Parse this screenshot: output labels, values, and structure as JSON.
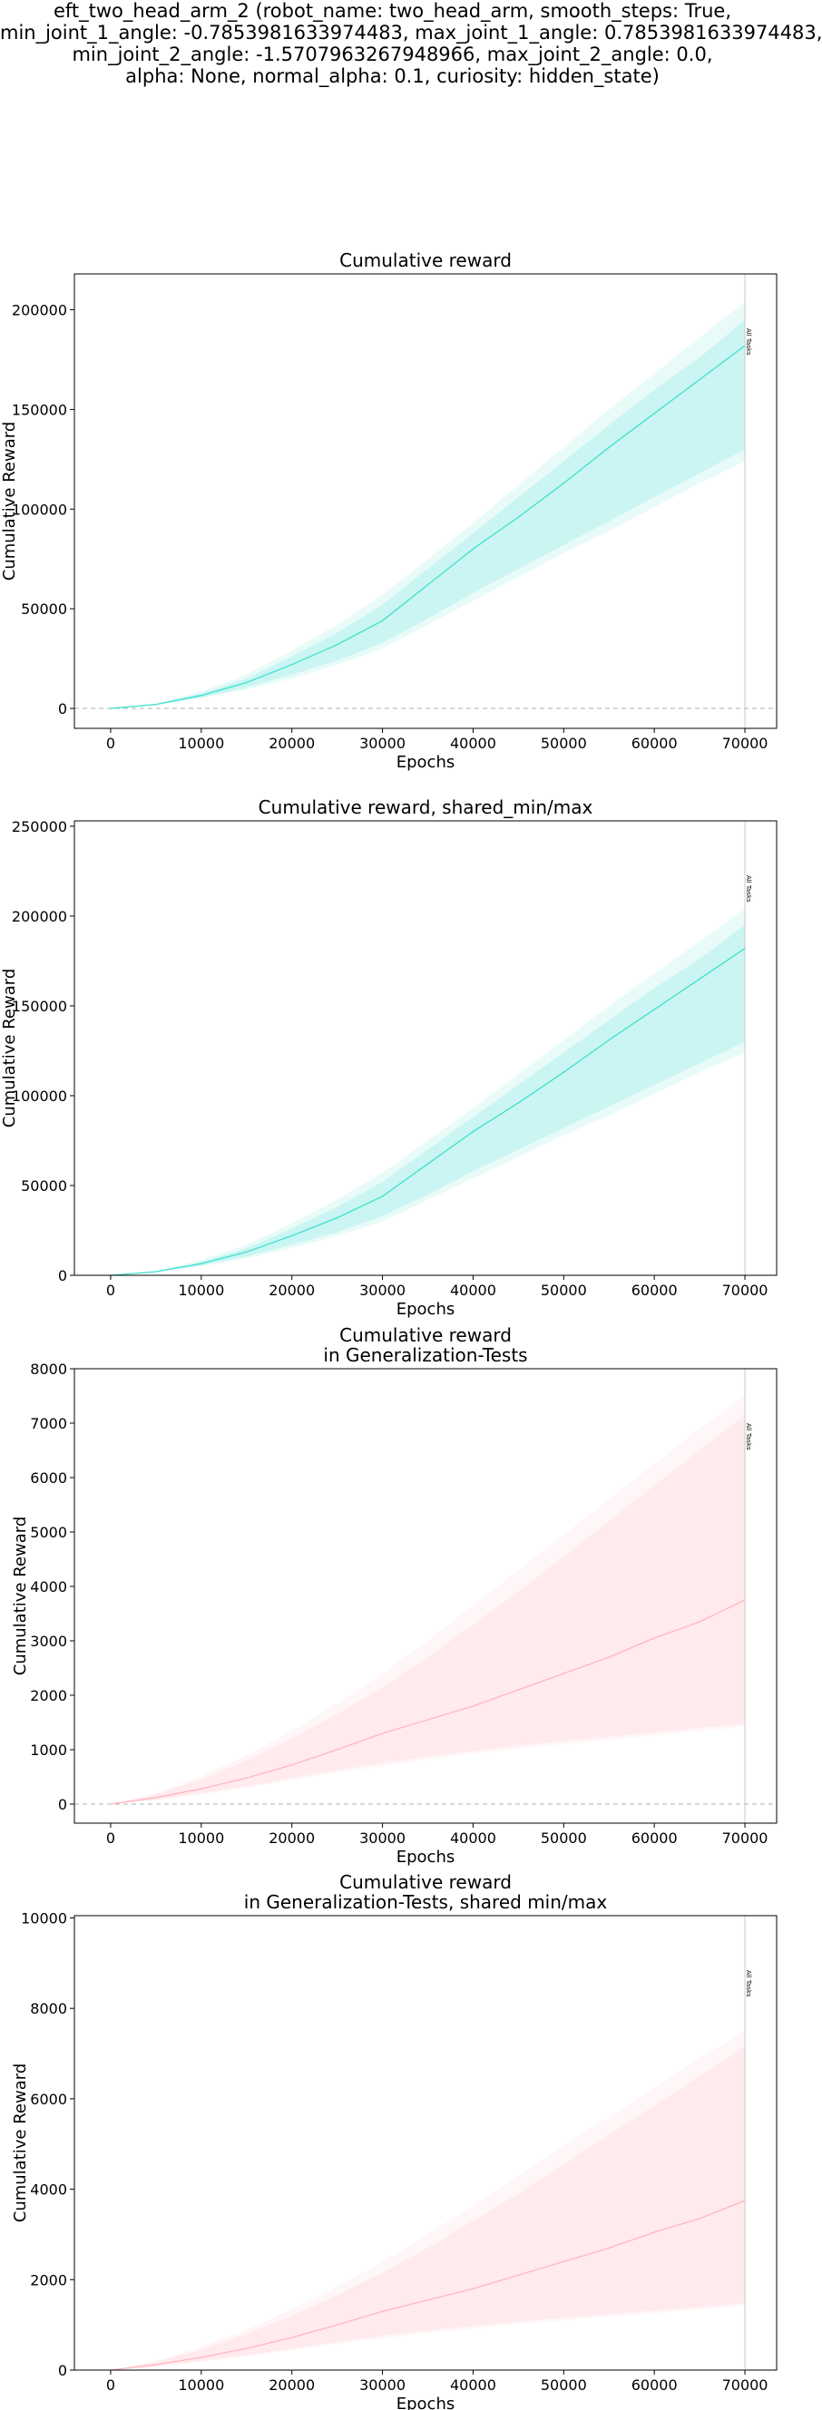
{
  "figure": {
    "suptitle_lines": [
      "eft_two_head_arm_2 (robot_name: two_head_arm, smooth_steps: True,",
      "min_joint_1_angle: -0.7853981633974483, max_joint_1_angle: 0.7853981633974483,",
      "min_joint_2_angle: -1.5707963267948966, max_joint_2_angle: 0.0,",
      "alpha: None, normal_alpha: 0.1, curiosity: hidden_state)"
    ]
  },
  "chart_data": [
    {
      "type": "line",
      "title_lines": [
        "Cumulative reward"
      ],
      "xlabel": "Epochs",
      "ylabel": "Cumulative Reward",
      "xlim": [
        -4000,
        73500
      ],
      "ylim": [
        -10000,
        218000
      ],
      "xticks": [
        0,
        10000,
        20000,
        30000,
        40000,
        50000,
        60000,
        70000
      ],
      "yticks": [
        0,
        50000,
        100000,
        150000,
        200000
      ],
      "zero_line": true,
      "vline": {
        "x": 70000,
        "label": "All Tasks"
      },
      "color": "#40e0d0",
      "grid": false,
      "series": [
        {
          "x": [
            0,
            5000,
            10000,
            15000,
            20000,
            25000,
            30000,
            35000,
            40000,
            45000,
            50000,
            55000,
            60000,
            65000,
            70000
          ],
          "mean": [
            0,
            2000,
            6500,
            13000,
            22000,
            32000,
            44000,
            62000,
            80000,
            96000,
            113000,
            131000,
            148000,
            165000,
            182000
          ],
          "inner_low": [
            0,
            1800,
            5500,
            10500,
            17000,
            24000,
            33000,
            45000,
            58000,
            70000,
            82000,
            94000,
            106000,
            118000,
            130000
          ],
          "inner_high": [
            0,
            2200,
            7500,
            15000,
            26000,
            38000,
            52000,
            70000,
            88000,
            106000,
            124000,
            142000,
            160000,
            176000,
            195000
          ],
          "outer_low": [
            0,
            1700,
            5000,
            9500,
            15000,
            22000,
            30000,
            42000,
            54000,
            66000,
            78000,
            89000,
            101000,
            113000,
            124000
          ],
          "outer_high": [
            0,
            2400,
            8500,
            17000,
            29000,
            42000,
            57000,
            75000,
            93000,
            112000,
            131000,
            150000,
            168000,
            186000,
            204000
          ]
        }
      ]
    },
    {
      "type": "line",
      "title_lines": [
        "Cumulative reward, shared_min/max"
      ],
      "xlabel": "Epochs",
      "ylabel": "Cumulative Reward",
      "xlim": [
        -4000,
        73500
      ],
      "ylim": [
        0,
        253000
      ],
      "xticks": [
        0,
        10000,
        20000,
        30000,
        40000,
        50000,
        60000,
        70000
      ],
      "yticks": [
        0,
        50000,
        100000,
        150000,
        200000,
        250000
      ],
      "zero_line": false,
      "vline": {
        "x": 70000,
        "label": "All Tasks"
      },
      "color": "#40e0d0",
      "grid": false,
      "series": [
        {
          "x": [
            0,
            5000,
            10000,
            15000,
            20000,
            25000,
            30000,
            35000,
            40000,
            45000,
            50000,
            55000,
            60000,
            65000,
            70000
          ],
          "mean": [
            0,
            2000,
            6500,
            13000,
            22000,
            32000,
            44000,
            62000,
            80000,
            96000,
            113000,
            131000,
            148000,
            165000,
            182000
          ],
          "inner_low": [
            0,
            1800,
            5500,
            10500,
            17000,
            24000,
            33000,
            45000,
            58000,
            70000,
            82000,
            94000,
            106000,
            118000,
            130000
          ],
          "inner_high": [
            0,
            2200,
            7500,
            15000,
            26000,
            38000,
            52000,
            70000,
            88000,
            106000,
            124000,
            142000,
            160000,
            176000,
            195000
          ],
          "outer_low": [
            0,
            1700,
            5000,
            9500,
            15000,
            22000,
            30000,
            42000,
            54000,
            66000,
            78000,
            89000,
            101000,
            113000,
            124000
          ],
          "outer_high": [
            0,
            2400,
            8500,
            17000,
            29000,
            42000,
            57000,
            75000,
            93000,
            112000,
            131000,
            150000,
            168000,
            186000,
            204000
          ]
        }
      ]
    },
    {
      "type": "line",
      "title_lines": [
        "Cumulative reward",
        "in Generalization-Tests"
      ],
      "xlabel": "Epochs",
      "ylabel": "Cumulative Reward",
      "xlim": [
        -4000,
        73500
      ],
      "ylim": [
        -350,
        8000
      ],
      "xticks": [
        0,
        10000,
        20000,
        30000,
        40000,
        50000,
        60000,
        70000
      ],
      "yticks": [
        0,
        1000,
        2000,
        3000,
        4000,
        5000,
        6000,
        7000,
        8000
      ],
      "zero_line": true,
      "vline": {
        "x": 70000,
        "label": "All Tasks"
      },
      "color": "#ffb6c1",
      "grid": false,
      "series": [
        {
          "x": [
            0,
            5000,
            10000,
            15000,
            20000,
            25000,
            30000,
            35000,
            40000,
            45000,
            50000,
            55000,
            60000,
            65000,
            70000
          ],
          "mean": [
            0,
            120,
            280,
            480,
            720,
            1000,
            1300,
            1550,
            1800,
            2100,
            2400,
            2700,
            3050,
            3350,
            3750
          ],
          "inner_low": [
            0,
            80,
            200,
            330,
            480,
            620,
            760,
            880,
            980,
            1080,
            1160,
            1240,
            1320,
            1400,
            1480
          ],
          "inner_high": [
            0,
            180,
            450,
            800,
            1200,
            1650,
            2150,
            2700,
            3300,
            3900,
            4550,
            5200,
            5850,
            6500,
            7150
          ],
          "outer_low": [
            0,
            70,
            180,
            300,
            440,
            580,
            700,
            820,
            920,
            1020,
            1100,
            1180,
            1260,
            1340,
            1420
          ],
          "outer_high": [
            0,
            200,
            520,
            900,
            1350,
            1850,
            2400,
            3000,
            3650,
            4300,
            4950,
            5600,
            6250,
            6900,
            7500
          ]
        }
      ]
    },
    {
      "type": "line",
      "title_lines": [
        "Cumulative reward",
        "in Generalization-Tests, shared min/max"
      ],
      "xlabel": "Epochs",
      "ylabel": "Cumulative Reward",
      "xlim": [
        -4000,
        73500
      ],
      "ylim": [
        0,
        10050
      ],
      "xticks": [
        0,
        10000,
        20000,
        30000,
        40000,
        50000,
        60000,
        70000
      ],
      "yticks": [
        0,
        2000,
        4000,
        6000,
        8000,
        10000
      ],
      "zero_line": false,
      "vline": {
        "x": 70000,
        "label": "All Tasks"
      },
      "color": "#ffb6c1",
      "grid": false,
      "series": [
        {
          "x": [
            0,
            5000,
            10000,
            15000,
            20000,
            25000,
            30000,
            35000,
            40000,
            45000,
            50000,
            55000,
            60000,
            65000,
            70000
          ],
          "mean": [
            0,
            120,
            280,
            480,
            720,
            1000,
            1300,
            1550,
            1800,
            2100,
            2400,
            2700,
            3050,
            3350,
            3750
          ],
          "inner_low": [
            0,
            80,
            200,
            330,
            480,
            620,
            760,
            880,
            980,
            1080,
            1160,
            1240,
            1320,
            1400,
            1480
          ],
          "inner_high": [
            0,
            180,
            450,
            800,
            1200,
            1650,
            2150,
            2700,
            3300,
            3900,
            4550,
            5200,
            5850,
            6500,
            7150
          ],
          "outer_low": [
            0,
            70,
            180,
            300,
            440,
            580,
            700,
            820,
            920,
            1020,
            1100,
            1180,
            1260,
            1340,
            1420
          ],
          "outer_high": [
            0,
            200,
            520,
            900,
            1350,
            1850,
            2400,
            3000,
            3650,
            4300,
            4950,
            5600,
            6250,
            6900,
            7500
          ]
        }
      ]
    }
  ]
}
